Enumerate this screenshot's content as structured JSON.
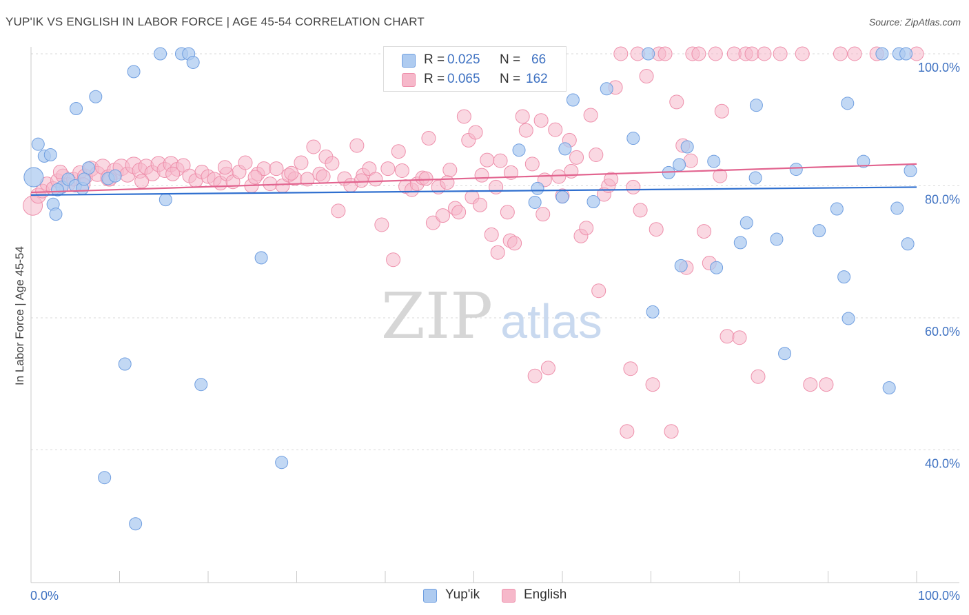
{
  "title": "YUP'IK VS ENGLISH IN LABOR FORCE | AGE 45-54 CORRELATION CHART",
  "source": "Source: ZipAtlas.com",
  "watermark": {
    "zip": "ZIP",
    "atlas": "atlas"
  },
  "legend": {
    "rows": [
      {
        "r_label": "R = ",
        "r_value": "0.025",
        "n_label": "N = ",
        "n_value": "66"
      },
      {
        "r_label": "R = ",
        "r_value": "0.065",
        "n_label": "N = ",
        "n_value": "162"
      }
    ]
  },
  "bottom_legend": {
    "series1": "Yup'ik",
    "series2": "English"
  },
  "colors": {
    "yupik_fill": "#aecbf0",
    "yupik_stroke": "#6f9ee0",
    "yupik_line": "#2f6fcf",
    "english_fill": "#f6b8ca",
    "english_stroke": "#ee8fab",
    "english_line": "#e2648f",
    "tick_label": "#3f72c2",
    "grid": "#d8d8d8"
  },
  "chart_data": {
    "type": "scatter",
    "title": "YUP'IK VS ENGLISH IN LABOR FORCE | AGE 45-54 CORRELATION CHART",
    "xlabel": "",
    "ylabel": "In Labor Force | Age 45-54",
    "xlim": [
      0,
      100
    ],
    "ylim": [
      20,
      102
    ],
    "x_tick_labels": [
      "0.0%",
      "100.0%"
    ],
    "y_ticks": [
      40,
      60,
      80,
      100
    ],
    "y_tick_labels": [
      "40.0%",
      "60.0%",
      "80.0%",
      "100.0%"
    ],
    "grid": "horizontal dashed",
    "series": [
      {
        "name": "Yup'ik",
        "r": 0.025,
        "n": 66,
        "trend": {
          "x": [
            0,
            100
          ],
          "y": [
            78.6,
            79.8
          ]
        },
        "points": [
          [
            0.3,
            81.3,
            14
          ],
          [
            0.8,
            86.3,
            9
          ],
          [
            1.5,
            84.5,
            9
          ],
          [
            2.2,
            84.7,
            9
          ],
          [
            2.5,
            77.2,
            9
          ],
          [
            2.8,
            75.7,
            9
          ],
          [
            3.5,
            79.8,
            9
          ],
          [
            4.2,
            81.0,
            9
          ],
          [
            5.0,
            80.0,
            9
          ],
          [
            5.8,
            79.6,
            9
          ],
          [
            6.5,
            82.7,
            9
          ],
          [
            5.1,
            91.7,
            9
          ],
          [
            7.3,
            93.5,
            9
          ],
          [
            8.7,
            81.1,
            9
          ],
          [
            11.6,
            97.3,
            9
          ],
          [
            14.6,
            100,
            9
          ],
          [
            17.0,
            100,
            9
          ],
          [
            17.8,
            100,
            9
          ],
          [
            18.3,
            98.7,
            9
          ],
          [
            15.2,
            77.9,
            9
          ],
          [
            8.3,
            35.8,
            9
          ],
          [
            10.6,
            53.0,
            9
          ],
          [
            11.8,
            28.8,
            9
          ],
          [
            19.2,
            49.9,
            9
          ],
          [
            26.0,
            69.1,
            9
          ],
          [
            28.3,
            38.1,
            9
          ],
          [
            55.1,
            85.4,
            9
          ],
          [
            57.2,
            79.6,
            9
          ],
          [
            56.9,
            77.5,
            9
          ],
          [
            60.0,
            78.3,
            9
          ],
          [
            60.3,
            85.6,
            9
          ],
          [
            61.2,
            93.0,
            9
          ],
          [
            63.5,
            77.6,
            9
          ],
          [
            65.0,
            94.7,
            9
          ],
          [
            68.0,
            87.2,
            9
          ],
          [
            69.7,
            100,
            9
          ],
          [
            70.2,
            60.9,
            9
          ],
          [
            72.0,
            82.0,
            9
          ],
          [
            73.2,
            83.2,
            9
          ],
          [
            73.4,
            67.9,
            9
          ],
          [
            74.1,
            85.9,
            9
          ],
          [
            77.1,
            83.7,
            9
          ],
          [
            77.4,
            67.6,
            9
          ],
          [
            80.1,
            71.4,
            9
          ],
          [
            80.8,
            74.4,
            9
          ],
          [
            81.8,
            81.2,
            9
          ],
          [
            81.9,
            92.2,
            9
          ],
          [
            84.2,
            71.9,
            9
          ],
          [
            85.1,
            54.6,
            9
          ],
          [
            86.4,
            82.5,
            9
          ],
          [
            89.0,
            73.2,
            9
          ],
          [
            91.0,
            76.5,
            9
          ],
          [
            91.8,
            66.2,
            9
          ],
          [
            92.3,
            59.9,
            9
          ],
          [
            94.0,
            83.7,
            9
          ],
          [
            96.1,
            100,
            9
          ],
          [
            96.9,
            49.4,
            9
          ],
          [
            97.8,
            76.6,
            9
          ],
          [
            98.0,
            100,
            9
          ],
          [
            98.8,
            100,
            9
          ],
          [
            99.0,
            71.2,
            9
          ],
          [
            99.3,
            82.3,
            9
          ],
          [
            92.2,
            92.5,
            9
          ],
          [
            3.0,
            79.4,
            9
          ],
          [
            6.0,
            81.0,
            9
          ],
          [
            9.5,
            81.5,
            9
          ]
        ]
      },
      {
        "name": "English",
        "r": 0.065,
        "n": 162,
        "trend": {
          "x": [
            0,
            100
          ],
          "y": [
            79.0,
            83.3
          ]
        },
        "points": [
          [
            0.2,
            77.0,
            14
          ],
          [
            0.8,
            78.5,
            11
          ],
          [
            1.3,
            79.2,
            10
          ],
          [
            1.8,
            80.3,
            10
          ],
          [
            2.5,
            79.6,
            10
          ],
          [
            3.0,
            80.8,
            10
          ],
          [
            3.6,
            81.5,
            10
          ],
          [
            4.2,
            80.2,
            10
          ],
          [
            4.8,
            81.0,
            10
          ],
          [
            5.5,
            82.0,
            10
          ],
          [
            6.1,
            81.4,
            11
          ],
          [
            6.8,
            82.6,
            11
          ],
          [
            7.5,
            81.8,
            11
          ],
          [
            8.1,
            82.9,
            11
          ],
          [
            8.8,
            81.2,
            12
          ],
          [
            9.5,
            82.2,
            12
          ],
          [
            10.2,
            82.8,
            12
          ],
          [
            10.9,
            81.7,
            11
          ],
          [
            11.6,
            83.1,
            12
          ],
          [
            12.3,
            82.3,
            11
          ],
          [
            13.0,
            82.9,
            11
          ],
          [
            13.7,
            81.9,
            11
          ],
          [
            14.4,
            83.3,
            11
          ],
          [
            15.1,
            82.4,
            11
          ],
          [
            15.8,
            83.3,
            11
          ],
          [
            16.5,
            82.5,
            10
          ],
          [
            17.2,
            83.1,
            10
          ],
          [
            17.9,
            81.5,
            10
          ],
          [
            18.6,
            80.8,
            10
          ],
          [
            19.3,
            82.1,
            10
          ],
          [
            20.0,
            81.4,
            10
          ],
          [
            20.7,
            81.0,
            10
          ],
          [
            21.4,
            80.4,
            10
          ],
          [
            22.1,
            81.8,
            10
          ],
          [
            22.8,
            80.6,
            10
          ],
          [
            23.5,
            82.1,
            10
          ],
          [
            24.2,
            83.5,
            10
          ],
          [
            24.9,
            80.0,
            10
          ],
          [
            25.6,
            81.8,
            10
          ],
          [
            26.3,
            82.6,
            10
          ],
          [
            27.0,
            80.3,
            10
          ],
          [
            27.7,
            82.6,
            10
          ],
          [
            28.4,
            80.0,
            10
          ],
          [
            29.1,
            81.6,
            10
          ],
          [
            29.8,
            81.1,
            10
          ],
          [
            30.5,
            83.5,
            10
          ],
          [
            31.2,
            81.0,
            10
          ],
          [
            31.9,
            85.9,
            10
          ],
          [
            32.6,
            81.8,
            10
          ],
          [
            33.3,
            84.4,
            10
          ],
          [
            34.0,
            83.4,
            10
          ],
          [
            34.7,
            76.2,
            10
          ],
          [
            35.4,
            81.1,
            10
          ],
          [
            36.1,
            80.1,
            10
          ],
          [
            36.8,
            86.1,
            10
          ],
          [
            37.5,
            81.6,
            10
          ],
          [
            38.2,
            82.6,
            10
          ],
          [
            38.9,
            81.0,
            10
          ],
          [
            39.6,
            74.1,
            10
          ],
          [
            40.3,
            82.6,
            10
          ],
          [
            40.9,
            68.8,
            10
          ],
          [
            41.5,
            85.2,
            10
          ],
          [
            42.3,
            79.9,
            10
          ],
          [
            43.0,
            79.4,
            10
          ],
          [
            43.6,
            80.3,
            10
          ],
          [
            44.2,
            81.2,
            10
          ],
          [
            44.9,
            87.2,
            10
          ],
          [
            45.4,
            74.4,
            10
          ],
          [
            46.0,
            79.8,
            10
          ],
          [
            46.5,
            75.5,
            10
          ],
          [
            47.3,
            82.4,
            10
          ],
          [
            47.9,
            76.6,
            10
          ],
          [
            48.3,
            76.0,
            10
          ],
          [
            48.9,
            90.5,
            10
          ],
          [
            49.4,
            86.9,
            10
          ],
          [
            49.8,
            78.3,
            10
          ],
          [
            50.2,
            88.1,
            10
          ],
          [
            50.7,
            77.1,
            10
          ],
          [
            51.5,
            83.9,
            10
          ],
          [
            52.0,
            72.6,
            10
          ],
          [
            52.5,
            79.8,
            10
          ],
          [
            52.7,
            69.9,
            10
          ],
          [
            53.0,
            83.8,
            10
          ],
          [
            53.8,
            76.0,
            10
          ],
          [
            54.1,
            71.7,
            10
          ],
          [
            54.6,
            71.3,
            10
          ],
          [
            55.5,
            90.5,
            10
          ],
          [
            55.9,
            88.4,
            10
          ],
          [
            56.6,
            83.3,
            10
          ],
          [
            56.9,
            51.2,
            10
          ],
          [
            57.6,
            89.9,
            10
          ],
          [
            57.8,
            75.7,
            10
          ],
          [
            58.4,
            52.4,
            10
          ],
          [
            59.2,
            88.5,
            10
          ],
          [
            59.6,
            81.4,
            10
          ],
          [
            60.0,
            78.5,
            10
          ],
          [
            60.8,
            86.9,
            10
          ],
          [
            61.6,
            84.3,
            10
          ],
          [
            62.1,
            72.4,
            10
          ],
          [
            62.7,
            73.6,
            10
          ],
          [
            63.2,
            90.7,
            10
          ],
          [
            63.8,
            84.7,
            10
          ],
          [
            64.1,
            64.1,
            10
          ],
          [
            64.7,
            78.7,
            10
          ],
          [
            65.2,
            80.0,
            10
          ],
          [
            66.0,
            94.9,
            10
          ],
          [
            66.6,
            100,
            10
          ],
          [
            67.3,
            42.8,
            10
          ],
          [
            67.7,
            52.3,
            10
          ],
          [
            68.5,
            100,
            10
          ],
          [
            68.8,
            76.3,
            10
          ],
          [
            69.5,
            96.6,
            10
          ],
          [
            70.2,
            49.9,
            10
          ],
          [
            70.9,
            100,
            10
          ],
          [
            71.6,
            100,
            10
          ],
          [
            72.3,
            42.8,
            10
          ],
          [
            72.9,
            92.7,
            10
          ],
          [
            73.6,
            86.1,
            10
          ],
          [
            74.0,
            67.6,
            10
          ],
          [
            74.7,
            100,
            10
          ],
          [
            75.4,
            100,
            10
          ],
          [
            76.0,
            73.1,
            10
          ],
          [
            76.6,
            68.3,
            10
          ],
          [
            77.3,
            100,
            10
          ],
          [
            78.0,
            91.3,
            10
          ],
          [
            78.6,
            57.2,
            10
          ],
          [
            79.4,
            100,
            10
          ],
          [
            80.0,
            57.0,
            10
          ],
          [
            80.7,
            100,
            10
          ],
          [
            81.4,
            100,
            10
          ],
          [
            82.1,
            51.1,
            10
          ],
          [
            82.8,
            100,
            10
          ],
          [
            84.6,
            100,
            10
          ],
          [
            87.1,
            100,
            10
          ],
          [
            88.0,
            49.9,
            10
          ],
          [
            89.8,
            49.9,
            10
          ],
          [
            91.4,
            100,
            10
          ],
          [
            93.0,
            100,
            10
          ],
          [
            95.5,
            100,
            10
          ],
          [
            100.0,
            100,
            10
          ],
          [
            68.0,
            79.8,
            10
          ],
          [
            70.6,
            73.4,
            10
          ],
          [
            74.5,
            83.8,
            10
          ],
          [
            77.8,
            81.5,
            10
          ],
          [
            3.3,
            82.1,
            10
          ],
          [
            5.9,
            80.2,
            10
          ],
          [
            8.9,
            81.0,
            10
          ],
          [
            12.5,
            80.7,
            10
          ],
          [
            16.0,
            81.8,
            10
          ],
          [
            21.9,
            82.8,
            10
          ],
          [
            25.3,
            81.3,
            10
          ],
          [
            29.4,
            81.9,
            10
          ],
          [
            33.0,
            81.4,
            10
          ],
          [
            37.3,
            80.8,
            10
          ],
          [
            41.9,
            82.3,
            10
          ],
          [
            44.6,
            81.1,
            10
          ],
          [
            47.0,
            80.5,
            10
          ],
          [
            50.9,
            81.6,
            10
          ],
          [
            54.2,
            82.0,
            10
          ],
          [
            58.0,
            80.9,
            10
          ],
          [
            61.0,
            82.2,
            10
          ],
          [
            65.5,
            81.0,
            10
          ]
        ]
      }
    ]
  }
}
